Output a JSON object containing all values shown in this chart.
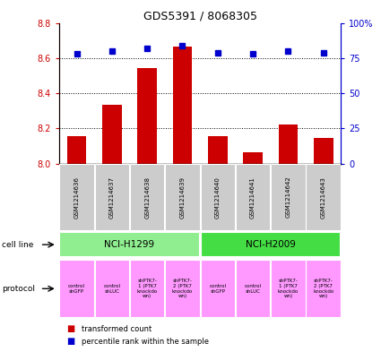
{
  "title": "GDS5391 / 8068305",
  "samples": [
    "GSM1214636",
    "GSM1214637",
    "GSM1214638",
    "GSM1214639",
    "GSM1214640",
    "GSM1214641",
    "GSM1214642",
    "GSM1214643"
  ],
  "red_values": [
    8.155,
    8.335,
    8.545,
    8.665,
    8.155,
    8.065,
    8.225,
    8.145
  ],
  "blue_values": [
    78,
    80,
    82,
    84,
    79,
    78,
    80,
    79
  ],
  "ylim_left": [
    8.0,
    8.8
  ],
  "ylim_right": [
    0,
    100
  ],
  "yticks_left": [
    8.0,
    8.2,
    8.4,
    8.6,
    8.8
  ],
  "yticks_right": [
    0,
    25,
    50,
    75,
    100
  ],
  "ytick_labels_right": [
    "0",
    "25",
    "50",
    "75",
    "100%"
  ],
  "protocol_labels": [
    "control\nshGFP",
    "control\nshLUC",
    "shPTK7-\n1 (PTK7\nknockdo\nwn)",
    "shPTK7-\n2 (PTK7\nknockdo\nwn)",
    "control\nshGFP",
    "control\nshLUC",
    "shPTK7-\n1 (PTK7\nknockdo\nwn)",
    "shPTK7-\n2 (PTK7\nknockdo\nwn)"
  ],
  "cell_line_color_1": "#90EE90",
  "cell_line_color_2": "#44DD44",
  "protocol_color": "#FF99FF",
  "bar_color": "#CC0000",
  "dot_color": "#0000CC",
  "label_color_left": "#CC0000",
  "label_color_right": "#0000CC",
  "sample_bg_color": "#CCCCCC",
  "cell_line_defs": [
    {
      "label": "NCI-H1299",
      "start": 0,
      "end": 3,
      "color": "#90EE90"
    },
    {
      "label": "NCI-H2009",
      "start": 4,
      "end": 7,
      "color": "#44DD44"
    }
  ]
}
